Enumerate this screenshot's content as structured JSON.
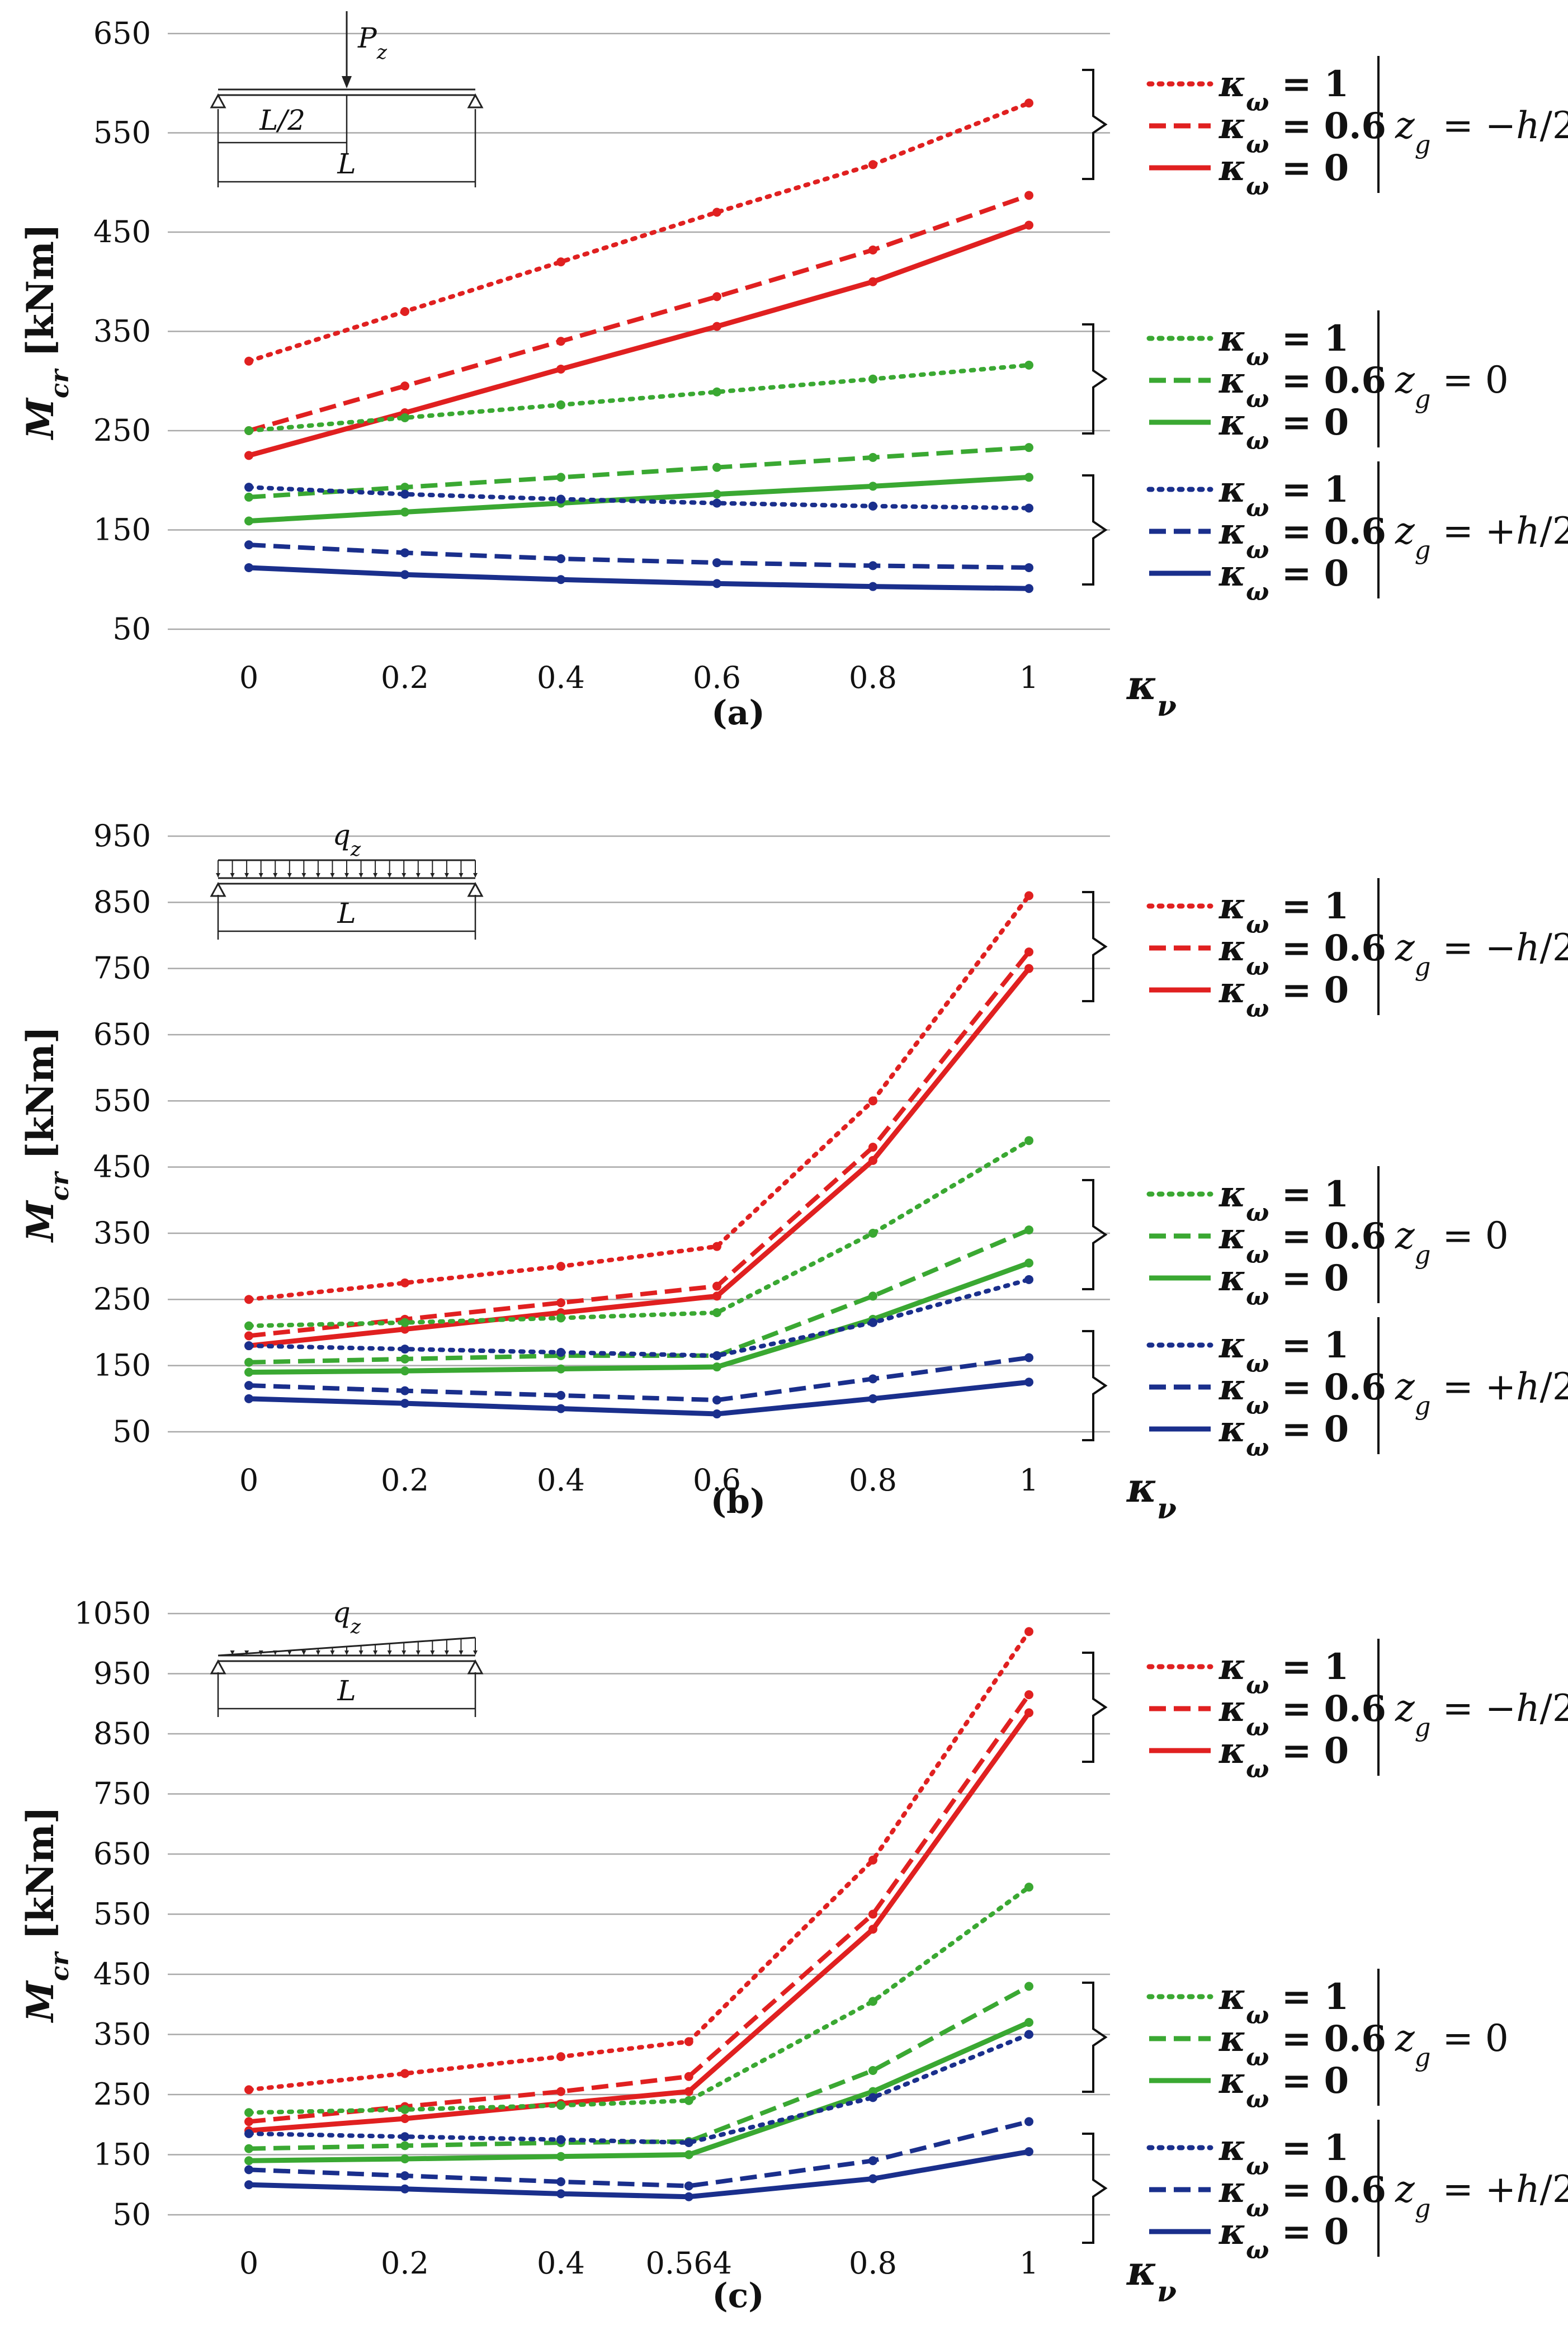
{
  "chart_data": [
    {
      "type": "line",
      "caption": "(a)",
      "load_diagram": {
        "type": "point",
        "load_label": "Pz",
        "half_span_label": "L/2",
        "span_label": "L"
      },
      "ylabel": "Mcr [kNm]",
      "xlabel": "κν",
      "ylim": [
        50,
        650
      ],
      "yticks": [
        "50",
        "150",
        "250",
        "350",
        "450",
        "550",
        "650"
      ],
      "x": [
        0,
        0.2,
        0.4,
        0.6,
        0.8,
        1
      ],
      "xticks": [
        "0",
        "0.2",
        "0.4",
        "0.6",
        "0.8",
        "1"
      ],
      "groups": [
        {
          "label": "zg = −h/2",
          "color": "#e02020",
          "series": [
            {
              "name": "κω = 1",
              "style": "dotted",
              "values": [
                320,
                370,
                420,
                470,
                518,
                580
              ]
            },
            {
              "name": "κω = 0.6",
              "style": "dashed",
              "values": [
                250,
                295,
                340,
                385,
                432,
                487
              ]
            },
            {
              "name": "κω = 0",
              "style": "solid",
              "values": [
                225,
                268,
                312,
                355,
                400,
                457
              ]
            }
          ]
        },
        {
          "label": "zg = 0",
          "color": "#3aa832",
          "series": [
            {
              "name": "κω = 1",
              "style": "dotted",
              "values": [
                250,
                263,
                276,
                289,
                302,
                316
              ]
            },
            {
              "name": "κω = 0.6",
              "style": "dashed",
              "values": [
                183,
                193,
                203,
                213,
                223,
                233
              ]
            },
            {
              "name": "κω = 0",
              "style": "solid",
              "values": [
                159,
                168,
                177,
                186,
                194,
                203
              ]
            }
          ]
        },
        {
          "label": "zg = +h/2",
          "color": "#1a2f8c",
          "series": [
            {
              "name": "κω = 1",
              "style": "dotted",
              "values": [
                193,
                186,
                181,
                177,
                174,
                172
              ]
            },
            {
              "name": "κω = 0.6",
              "style": "dashed",
              "values": [
                135,
                127,
                121,
                117,
                114,
                112
              ]
            },
            {
              "name": "κω = 0",
              "style": "solid",
              "values": [
                112,
                105,
                100,
                96,
                93,
                91
              ]
            }
          ]
        }
      ]
    },
    {
      "type": "line",
      "caption": "(b)",
      "load_diagram": {
        "type": "uniform",
        "load_label": "qz",
        "span_label": "L"
      },
      "ylabel": "Mcr [kNm]",
      "xlabel": "κν",
      "ylim": [
        50,
        950
      ],
      "yticks": [
        "50",
        "150",
        "250",
        "350",
        "450",
        "550",
        "650",
        "750",
        "850",
        "950"
      ],
      "x": [
        0,
        0.2,
        0.4,
        0.6,
        0.8,
        1
      ],
      "xticks": [
        "0",
        "0.2",
        "0.4",
        "0.6",
        "0.8",
        "1"
      ],
      "groups": [
        {
          "label": "zg = −h/2",
          "color": "#e02020",
          "series": [
            {
              "name": "κω = 1",
              "style": "dotted",
              "values": [
                250,
                275,
                300,
                330,
                550,
                860
              ]
            },
            {
              "name": "κω = 0.6",
              "style": "dashed",
              "values": [
                195,
                220,
                245,
                270,
                480,
                775
              ]
            },
            {
              "name": "κω = 0",
              "style": "solid",
              "values": [
                180,
                205,
                230,
                255,
                460,
                750
              ]
            }
          ]
        },
        {
          "label": "zg = 0",
          "color": "#3aa832",
          "series": [
            {
              "name": "κω = 1",
              "style": "dotted",
              "values": [
                210,
                215,
                222,
                230,
                350,
                490
              ]
            },
            {
              "name": "κω = 0.6",
              "style": "dashed",
              "values": [
                155,
                160,
                165,
                165,
                255,
                355
              ]
            },
            {
              "name": "κω = 0",
              "style": "solid",
              "values": [
                140,
                142,
                145,
                148,
                220,
                305
              ]
            }
          ]
        },
        {
          "label": "zg = +h/2",
          "color": "#1a2f8c",
          "series": [
            {
              "name": "κω = 1",
              "style": "dotted",
              "values": [
                180,
                175,
                170,
                165,
                215,
                280
              ]
            },
            {
              "name": "κω = 0.6",
              "style": "dashed",
              "values": [
                120,
                112,
                105,
                98,
                130,
                162
              ]
            },
            {
              "name": "κω = 0",
              "style": "solid",
              "values": [
                100,
                93,
                85,
                77,
                100,
                125
              ]
            }
          ]
        }
      ]
    },
    {
      "type": "line",
      "caption": "(c)",
      "load_diagram": {
        "type": "triangular",
        "load_label": "qz",
        "span_label": "L"
      },
      "ylabel": "Mcr [kNm]",
      "xlabel": "κν",
      "ylim": [
        50,
        1050
      ],
      "yticks": [
        "50",
        "150",
        "250",
        "350",
        "450",
        "550",
        "650",
        "750",
        "850",
        "950",
        "1050"
      ],
      "x": [
        0,
        0.2,
        0.4,
        0.564,
        0.8,
        1
      ],
      "xticks": [
        "0",
        "0.2",
        "0.4",
        "0.564",
        "0.8",
        "1"
      ],
      "groups": [
        {
          "label": "zg = −h/2",
          "color": "#e02020",
          "series": [
            {
              "name": "κω = 1",
              "style": "dotted",
              "values": [
                258,
                285,
                313,
                338,
                640,
                1020
              ]
            },
            {
              "name": "κω = 0.6",
              "style": "dashed",
              "values": [
                205,
                230,
                255,
                280,
                550,
                915
              ]
            },
            {
              "name": "κω = 0",
              "style": "solid",
              "values": [
                190,
                210,
                235,
                255,
                525,
                885
              ]
            }
          ]
        },
        {
          "label": "zg = 0",
          "color": "#3aa832",
          "series": [
            {
              "name": "κω = 1",
              "style": "dotted",
              "values": [
                220,
                225,
                232,
                240,
                405,
                595
              ]
            },
            {
              "name": "κω = 0.6",
              "style": "dashed",
              "values": [
                160,
                165,
                170,
                172,
                290,
                430
              ]
            },
            {
              "name": "κω = 0",
              "style": "solid",
              "values": [
                140,
                143,
                147,
                150,
                255,
                370
              ]
            }
          ]
        },
        {
          "label": "zg = +h/2",
          "color": "#1a2f8c",
          "series": [
            {
              "name": "κω = 1",
              "style": "dotted",
              "values": [
                185,
                180,
                175,
                170,
                245,
                350
              ]
            },
            {
              "name": "κω = 0.6",
              "style": "dashed",
              "values": [
                125,
                115,
                105,
                98,
                140,
                205
              ]
            },
            {
              "name": "κω = 0",
              "style": "solid",
              "values": [
                100,
                93,
                85,
                80,
                110,
                155
              ]
            }
          ]
        }
      ]
    }
  ]
}
